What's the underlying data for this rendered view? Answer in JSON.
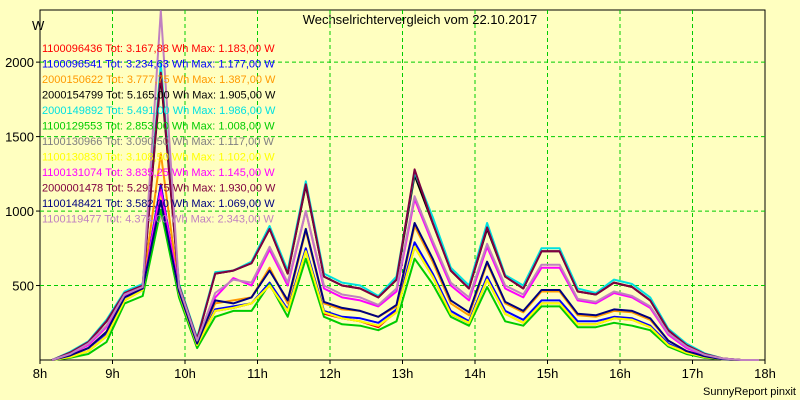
{
  "chart_data": {
    "type": "line",
    "title": "Wechselrichtervergleich vom 22.10.2017",
    "ylabel": "W",
    "xlabel": "",
    "footer": "SunnyReport pinxit",
    "x_ticks": [
      "8h",
      "9h",
      "10h",
      "11h",
      "12h",
      "13h",
      "14h",
      "15h",
      "16h",
      "17h",
      "18h"
    ],
    "y_ticks": [
      500,
      1000,
      1500,
      2000
    ],
    "xlim": [
      "08:00",
      "18:00"
    ],
    "ylim": [
      0,
      2350
    ],
    "grid": true,
    "legend_position": "top-left",
    "background_color": "#ffffc0",
    "grid_color": "#00cc00",
    "x": [
      "08:10",
      "08:25",
      "08:40",
      "08:55",
      "09:10",
      "09:25",
      "09:40",
      "09:55",
      "10:10",
      "10:25",
      "10:40",
      "10:55",
      "11:10",
      "11:25",
      "11:40",
      "11:55",
      "12:10",
      "12:25",
      "12:40",
      "12:55",
      "13:10",
      "13:25",
      "13:40",
      "13:55",
      "14:10",
      "14:25",
      "14:40",
      "14:55",
      "15:10",
      "15:25",
      "15:40",
      "15:55",
      "16:10",
      "16:25",
      "16:40",
      "16:55",
      "17:10",
      "17:25",
      "17:40",
      "17:55"
    ],
    "series": [
      {
        "name": "1100096436",
        "tot": "3.167,88",
        "max": "1.183,00",
        "legend": "1100096436 Tot: 3.167,88 Wh Max: 1.183,00 W",
        "color": "#ff0000",
        "values": [
          0,
          20,
          60,
          160,
          400,
          470,
          1180,
          450,
          100,
          330,
          350,
          380,
          500,
          330,
          740,
          310,
          280,
          260,
          220,
          330,
          760,
          560,
          310,
          250,
          540,
          310,
          250,
          380,
          380,
          240,
          240,
          280,
          270,
          230,
          100,
          50,
          20,
          5,
          0,
          0
        ]
      },
      {
        "name": "1100096541",
        "tot": "3.234,63",
        "max": "1.177,00",
        "legend": "1100096541 Tot: 3.234,63 Wh Max: 1.177,00 W",
        "color": "#0000ff",
        "values": [
          0,
          30,
          80,
          180,
          420,
          480,
          1177,
          460,
          110,
          340,
          360,
          380,
          520,
          340,
          750,
          330,
          290,
          280,
          250,
          340,
          790,
          580,
          330,
          260,
          560,
          330,
          270,
          400,
          400,
          260,
          260,
          290,
          280,
          230,
          110,
          50,
          20,
          5,
          0,
          0
        ]
      },
      {
        "name": "2000150622",
        "tot": "3.777,75",
        "max": "1.387,00",
        "legend": "2000150622 Tot: 3.777,75 Wh Max: 1.387,00 W",
        "color": "#ff9900",
        "values": [
          0,
          30,
          80,
          190,
          420,
          490,
          1387,
          470,
          110,
          380,
          400,
          420,
          620,
          380,
          870,
          380,
          340,
          330,
          290,
          360,
          900,
          660,
          380,
          300,
          650,
          380,
          320,
          460,
          460,
          300,
          290,
          330,
          320,
          270,
          130,
          60,
          25,
          5,
          0,
          0
        ]
      },
      {
        "name": "2000154799",
        "tot": "5.165,00",
        "max": "1.905,00",
        "legend": "2000154799 Tot: 5.165,00 Wh Max: 1.905,00 W",
        "color": "#000000",
        "values": [
          0,
          50,
          120,
          260,
          450,
          500,
          1905,
          500,
          140,
          580,
          600,
          650,
          880,
          580,
          1170,
          560,
          500,
          480,
          420,
          540,
          1240,
          920,
          600,
          480,
          880,
          560,
          480,
          730,
          730,
          460,
          440,
          520,
          490,
          400,
          200,
          100,
          40,
          10,
          0,
          0
        ]
      },
      {
        "name": "2000149892",
        "tot": "5.491,00",
        "max": "1.986,00",
        "legend": "2000149892 Tot: 5.491,00 Wh Max: 1.986,00 W",
        "color": "#00e0e0",
        "values": [
          0,
          55,
          125,
          270,
          460,
          510,
          1986,
          510,
          150,
          590,
          600,
          660,
          900,
          600,
          1200,
          580,
          520,
          500,
          430,
          560,
          1260,
          960,
          620,
          500,
          920,
          570,
          500,
          750,
          750,
          480,
          450,
          540,
          510,
          420,
          210,
          110,
          45,
          10,
          0,
          0
        ]
      },
      {
        "name": "1100129553",
        "tot": "2.853,00",
        "max": "1.008,00",
        "legend": "1100129553 Tot: 2.853,00 Wh Max: 1.008,00 W",
        "color": "#00cc00",
        "values": [
          0,
          15,
          40,
          120,
          380,
          430,
          1008,
          420,
          80,
          290,
          330,
          330,
          510,
          290,
          680,
          290,
          240,
          230,
          200,
          260,
          680,
          510,
          290,
          230,
          490,
          260,
          230,
          360,
          360,
          220,
          220,
          250,
          230,
          200,
          90,
          40,
          15,
          5,
          0,
          0
        ]
      },
      {
        "name": "1100130966",
        "tot": "3.090,50",
        "max": "1.117,00",
        "legend": "1100130966 Tot: 3.090,50 Wh Max: 1.117,00 W",
        "color": "#808080",
        "values": [
          0,
          20,
          60,
          160,
          400,
          470,
          1117,
          450,
          100,
          330,
          350,
          380,
          500,
          330,
          730,
          320,
          280,
          260,
          230,
          320,
          760,
          560,
          310,
          250,
          540,
          310,
          250,
          380,
          380,
          240,
          240,
          280,
          270,
          220,
          100,
          50,
          20,
          5,
          0,
          0
        ]
      },
      {
        "name": "1100130830",
        "tot": "3.108,50",
        "max": "1.102,00",
        "legend": "1100130830 Tot: 3.108,50 Wh Max: 1.102,00 W",
        "color": "#ffff00",
        "values": [
          0,
          20,
          60,
          160,
          400,
          470,
          1102,
          450,
          100,
          330,
          350,
          380,
          500,
          330,
          730,
          320,
          280,
          260,
          230,
          320,
          760,
          560,
          310,
          250,
          540,
          310,
          250,
          380,
          380,
          240,
          240,
          280,
          270,
          220,
          100,
          50,
          20,
          5,
          0,
          0
        ]
      },
      {
        "name": "1100131074",
        "tot": "3.835,25",
        "max": "1.145,00",
        "legend": "1100131074 Tot: 3.835,25 Wh Max: 1.145,00 W",
        "color": "#ff00ff",
        "values": [
          0,
          40,
          100,
          220,
          430,
          480,
          1145,
          480,
          120,
          420,
          550,
          500,
          740,
          500,
          1000,
          480,
          420,
          400,
          360,
          460,
          1080,
          780,
          500,
          400,
          760,
          480,
          420,
          620,
          620,
          400,
          380,
          450,
          420,
          350,
          170,
          80,
          30,
          10,
          0,
          0
        ]
      },
      {
        "name": "2000001478",
        "tot": "5.291,75",
        "max": "1.930,00",
        "legend": "2000001478 Tot: 5.291,75 Wh Max: 1.930,00 W",
        "color": "#800040",
        "values": [
          0,
          50,
          120,
          260,
          450,
          500,
          1930,
          500,
          140,
          580,
          600,
          650,
          880,
          580,
          1180,
          560,
          500,
          480,
          420,
          540,
          1280,
          920,
          600,
          480,
          890,
          560,
          480,
          730,
          730,
          460,
          440,
          520,
          490,
          400,
          200,
          100,
          40,
          10,
          0,
          0
        ]
      },
      {
        "name": "1100148421",
        "tot": "3.582,00",
        "max": "1.069,00",
        "legend": "1100148421 Tot: 3.582,00 Wh Max: 1.069,00 W",
        "color": "#000080",
        "values": [
          0,
          30,
          80,
          190,
          420,
          480,
          1069,
          460,
          110,
          400,
          380,
          420,
          600,
          400,
          880,
          390,
          350,
          330,
          290,
          370,
          920,
          680,
          400,
          320,
          660,
          390,
          330,
          470,
          470,
          310,
          300,
          340,
          330,
          280,
          130,
          60,
          25,
          5,
          0,
          0
        ]
      },
      {
        "name": "1100119477",
        "tot": "4.374,00",
        "max": "2.343,00",
        "legend": "1100119477 Tot: 4.374,00 Wh Max: 2.343,00 W",
        "color": "#c080c0",
        "values": [
          0,
          40,
          110,
          230,
          440,
          490,
          2343,
          490,
          130,
          450,
          540,
          520,
          760,
          520,
          1000,
          500,
          440,
          420,
          370,
          480,
          1100,
          800,
          520,
          420,
          780,
          500,
          440,
          640,
          640,
          410,
          390,
          460,
          430,
          360,
          180,
          90,
          35,
          10,
          0,
          0
        ]
      }
    ]
  }
}
